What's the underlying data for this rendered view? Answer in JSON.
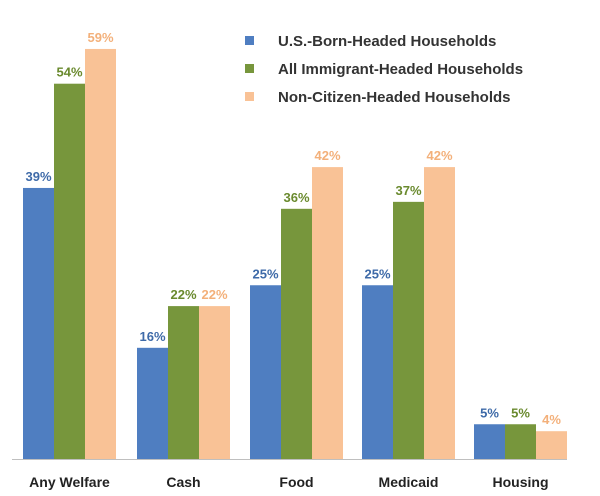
{
  "chart_data": {
    "type": "bar",
    "title": "",
    "xlabel": "",
    "ylabel": "",
    "ylim": [
      0,
      60
    ],
    "grid": false,
    "legend_position": "top-right",
    "categories": [
      "Any Welfare",
      "Cash",
      "Food",
      "Medicaid",
      "Housing"
    ],
    "series": [
      {
        "name": "U.S.-Born-Headed Households",
        "color": "#4f7ec1",
        "values": [
          39,
          16,
          25,
          25,
          5
        ],
        "labels": [
          "39%",
          "16%",
          "25%",
          "25%",
          "5%"
        ]
      },
      {
        "name": "All Immigrant-Headed Households",
        "color": "#77963c",
        "values": [
          54,
          22,
          36,
          37,
          5
        ],
        "labels": [
          "54%",
          "22%",
          "36%",
          "37%",
          "5%"
        ]
      },
      {
        "name": "Non-Citizen-Headed Households",
        "color": "#f9c296",
        "values": [
          59,
          22,
          42,
          42,
          4
        ],
        "labels": [
          "59%",
          "22%",
          "42%",
          "42%",
          "4%"
        ]
      }
    ],
    "label_colors": [
      "#3e6aa8",
      "#6a8a2e",
      "#f3b07a"
    ]
  }
}
